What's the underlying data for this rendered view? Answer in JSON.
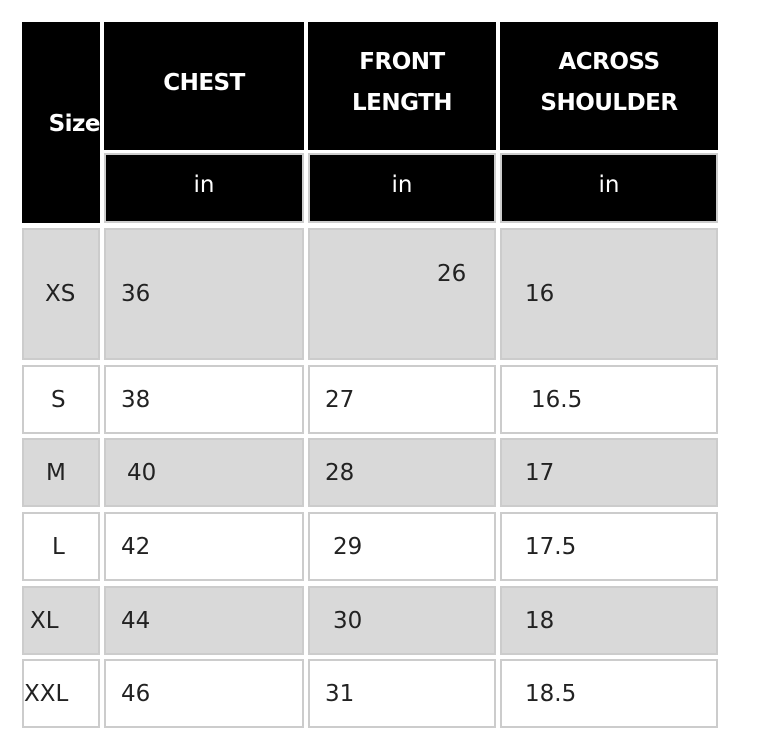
{
  "header": {
    "size": "Size",
    "columns": [
      {
        "label": "CHEST",
        "unit": "in"
      },
      {
        "label": "FRONT LENGTH",
        "line1": "FRONT",
        "line2": "LENGTH",
        "unit": "in"
      },
      {
        "label": "ACROSS SHOULDER",
        "line1": "ACROSS",
        "line2": "SHOULDER",
        "unit": "in"
      }
    ]
  },
  "rows": [
    {
      "size": "XS",
      "chest": "36",
      "front": "26",
      "across": "16"
    },
    {
      "size": "S",
      "chest": "38",
      "front": "27",
      "across": "16.5"
    },
    {
      "size": "M",
      "chest": "40",
      "front": "28",
      "across": "17"
    },
    {
      "size": "L",
      "chest": "42",
      "front": "29",
      "across": "17.5"
    },
    {
      "size": "XL",
      "chest": "44",
      "front": "30",
      "across": "18"
    },
    {
      "size": "XXL",
      "chest": "46",
      "front": "31",
      "across": "18.5"
    }
  ],
  "colors": {
    "header_bg": "#000000",
    "shaded_row": "#d9d9d9",
    "border": "#cccccc"
  }
}
